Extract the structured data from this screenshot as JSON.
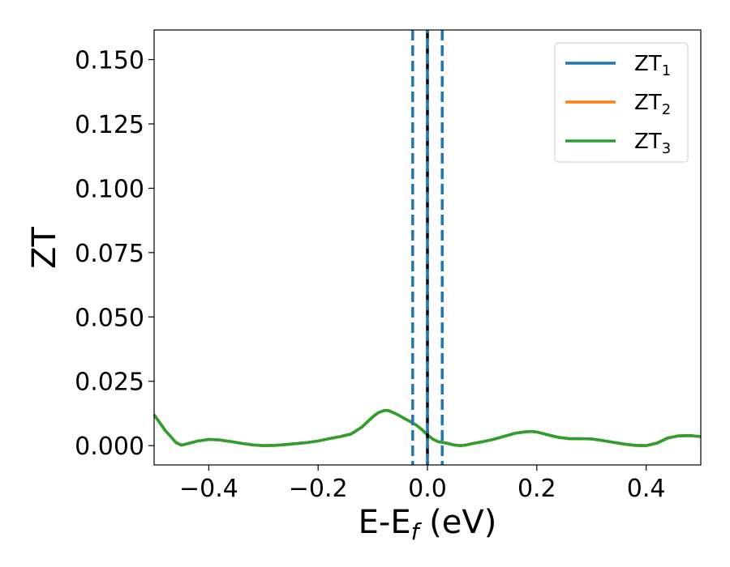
{
  "chart_data": {
    "type": "line",
    "xlabel_main": "E-E",
    "xlabel_sub": "f",
    "xlabel_unit": " (eV)",
    "ylabel": "ZT",
    "xlim": [
      -0.5,
      0.5
    ],
    "ylim": [
      -0.0075,
      0.1615
    ],
    "x_ticks": [
      -0.4,
      -0.2,
      0.0,
      0.2,
      0.4
    ],
    "x_tick_labels": [
      "−0.4",
      "−0.2",
      "0.0",
      "0.2",
      "0.4"
    ],
    "y_ticks": [
      0.0,
      0.025,
      0.05,
      0.075,
      0.1,
      0.125,
      0.15
    ],
    "y_tick_labels": [
      "0.000",
      "0.025",
      "0.050",
      "0.075",
      "0.100",
      "0.125",
      "0.150"
    ],
    "grid": false,
    "legend_position": "top-right",
    "series": [
      {
        "name_main": "ZT",
        "name_sub": "1",
        "color": "#1f77b4"
      },
      {
        "name_main": "ZT",
        "name_sub": "2",
        "color": "#ff7f0e"
      },
      {
        "name_main": "ZT",
        "name_sub": "3",
        "color": "#2ca02c"
      }
    ],
    "x": [
      -0.5,
      -0.48,
      -0.46,
      -0.45,
      -0.44,
      -0.42,
      -0.4,
      -0.38,
      -0.36,
      -0.34,
      -0.32,
      -0.3,
      -0.28,
      -0.26,
      -0.24,
      -0.22,
      -0.2,
      -0.18,
      -0.16,
      -0.14,
      -0.12,
      -0.1,
      -0.09,
      -0.08,
      -0.075,
      -0.07,
      -0.06,
      -0.05,
      -0.04,
      -0.03,
      -0.02,
      -0.01,
      0.0,
      0.01,
      0.02,
      0.03,
      0.04,
      0.05,
      0.06,
      0.07,
      0.08,
      0.1,
      0.12,
      0.14,
      0.16,
      0.18,
      0.19,
      0.2,
      0.22,
      0.24,
      0.26,
      0.28,
      0.3,
      0.32,
      0.34,
      0.36,
      0.38,
      0.4,
      0.42,
      0.44,
      0.46,
      0.48,
      0.5
    ],
    "values": [
      0.012,
      0.006,
      0.0012,
      0.0002,
      0.0007,
      0.0018,
      0.0024,
      0.0022,
      0.0016,
      0.0009,
      0.0003,
      0.0,
      0.0001,
      0.0004,
      0.0008,
      0.0012,
      0.0018,
      0.0027,
      0.0035,
      0.0045,
      0.0072,
      0.0112,
      0.0128,
      0.0136,
      0.0137,
      0.0135,
      0.0126,
      0.0115,
      0.0103,
      0.0092,
      0.0079,
      0.0062,
      0.0042,
      0.0025,
      0.0015,
      0.0012,
      0.0007,
      0.0002,
      0.0,
      0.0002,
      0.0007,
      0.0015,
      0.0024,
      0.0036,
      0.0048,
      0.0054,
      0.0055,
      0.0053,
      0.0042,
      0.0032,
      0.0027,
      0.0027,
      0.0026,
      0.002,
      0.0013,
      0.0006,
      0.0001,
      0.0,
      0.001,
      0.003,
      0.0038,
      0.0039,
      0.0035
    ],
    "vlines": [
      {
        "x": -0.027,
        "style": "dashed",
        "color": "#1f77b4"
      },
      {
        "x": 0.0,
        "style": "dashed",
        "color": "#000000"
      },
      {
        "x": 0.0,
        "style": "dashed-offset",
        "color": "#1f77b4"
      },
      {
        "x": 0.027,
        "style": "dashed",
        "color": "#1f77b4"
      }
    ]
  }
}
